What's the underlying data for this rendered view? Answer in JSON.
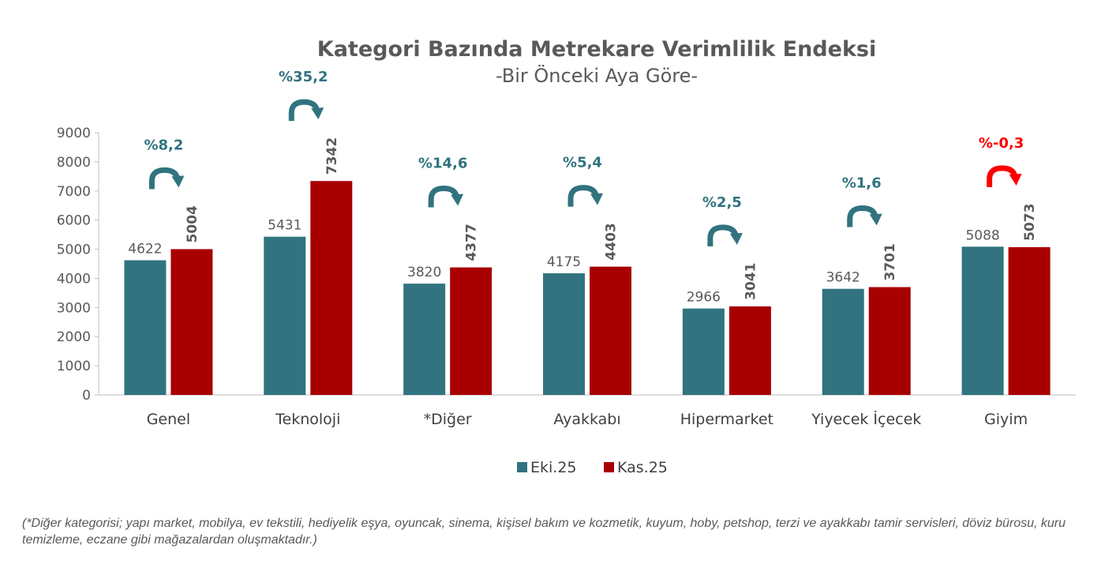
{
  "chart_data": {
    "type": "bar",
    "title": "Kategori Bazında Metrekare Verimlilik Endeksi",
    "subtitle": "-Bir Önceki Aya Göre-",
    "categories": [
      "Genel",
      "Teknoloji",
      "*Diğer",
      "Ayakkabı",
      "Hipermarket",
      "Yiyecek İçecek",
      "Giyim"
    ],
    "series": [
      {
        "name": "Eki.25",
        "color": "#31737F",
        "values": [
          4622,
          5431,
          3820,
          4175,
          2966,
          3642,
          5088
        ]
      },
      {
        "name": "Kas.25",
        "color": "#A80000",
        "values": [
          5004,
          7342,
          4377,
          4403,
          3041,
          3701,
          5073
        ]
      }
    ],
    "changes": [
      "%8,2",
      "%35,2",
      "%14,6",
      "%5,4",
      "%2,5",
      "%1,6",
      "%-0,3"
    ],
    "change_colors": [
      "#31737F",
      "#31737F",
      "#31737F",
      "#31737F",
      "#31737F",
      "#31737F",
      "#FF0000"
    ],
    "ylim": [
      0,
      9000
    ],
    "yticks": [
      0,
      1000,
      2000,
      3000,
      4000,
      5000,
      6000,
      7000,
      8000,
      9000
    ],
    "grid": false,
    "legend_position": "bottom-center"
  },
  "footnote": "(*Diğer kategorisi; yapı market, mobilya, ev tekstili, hediyelik eşya, oyuncak, sinema, kişisel bakım ve kozmetik, kuyum, hoby, petshop, terzi ve ayakkabı tamir servisleri, döviz bürosu, kuru temizleme, eczane gibi mağazalardan oluşmaktadır.)"
}
